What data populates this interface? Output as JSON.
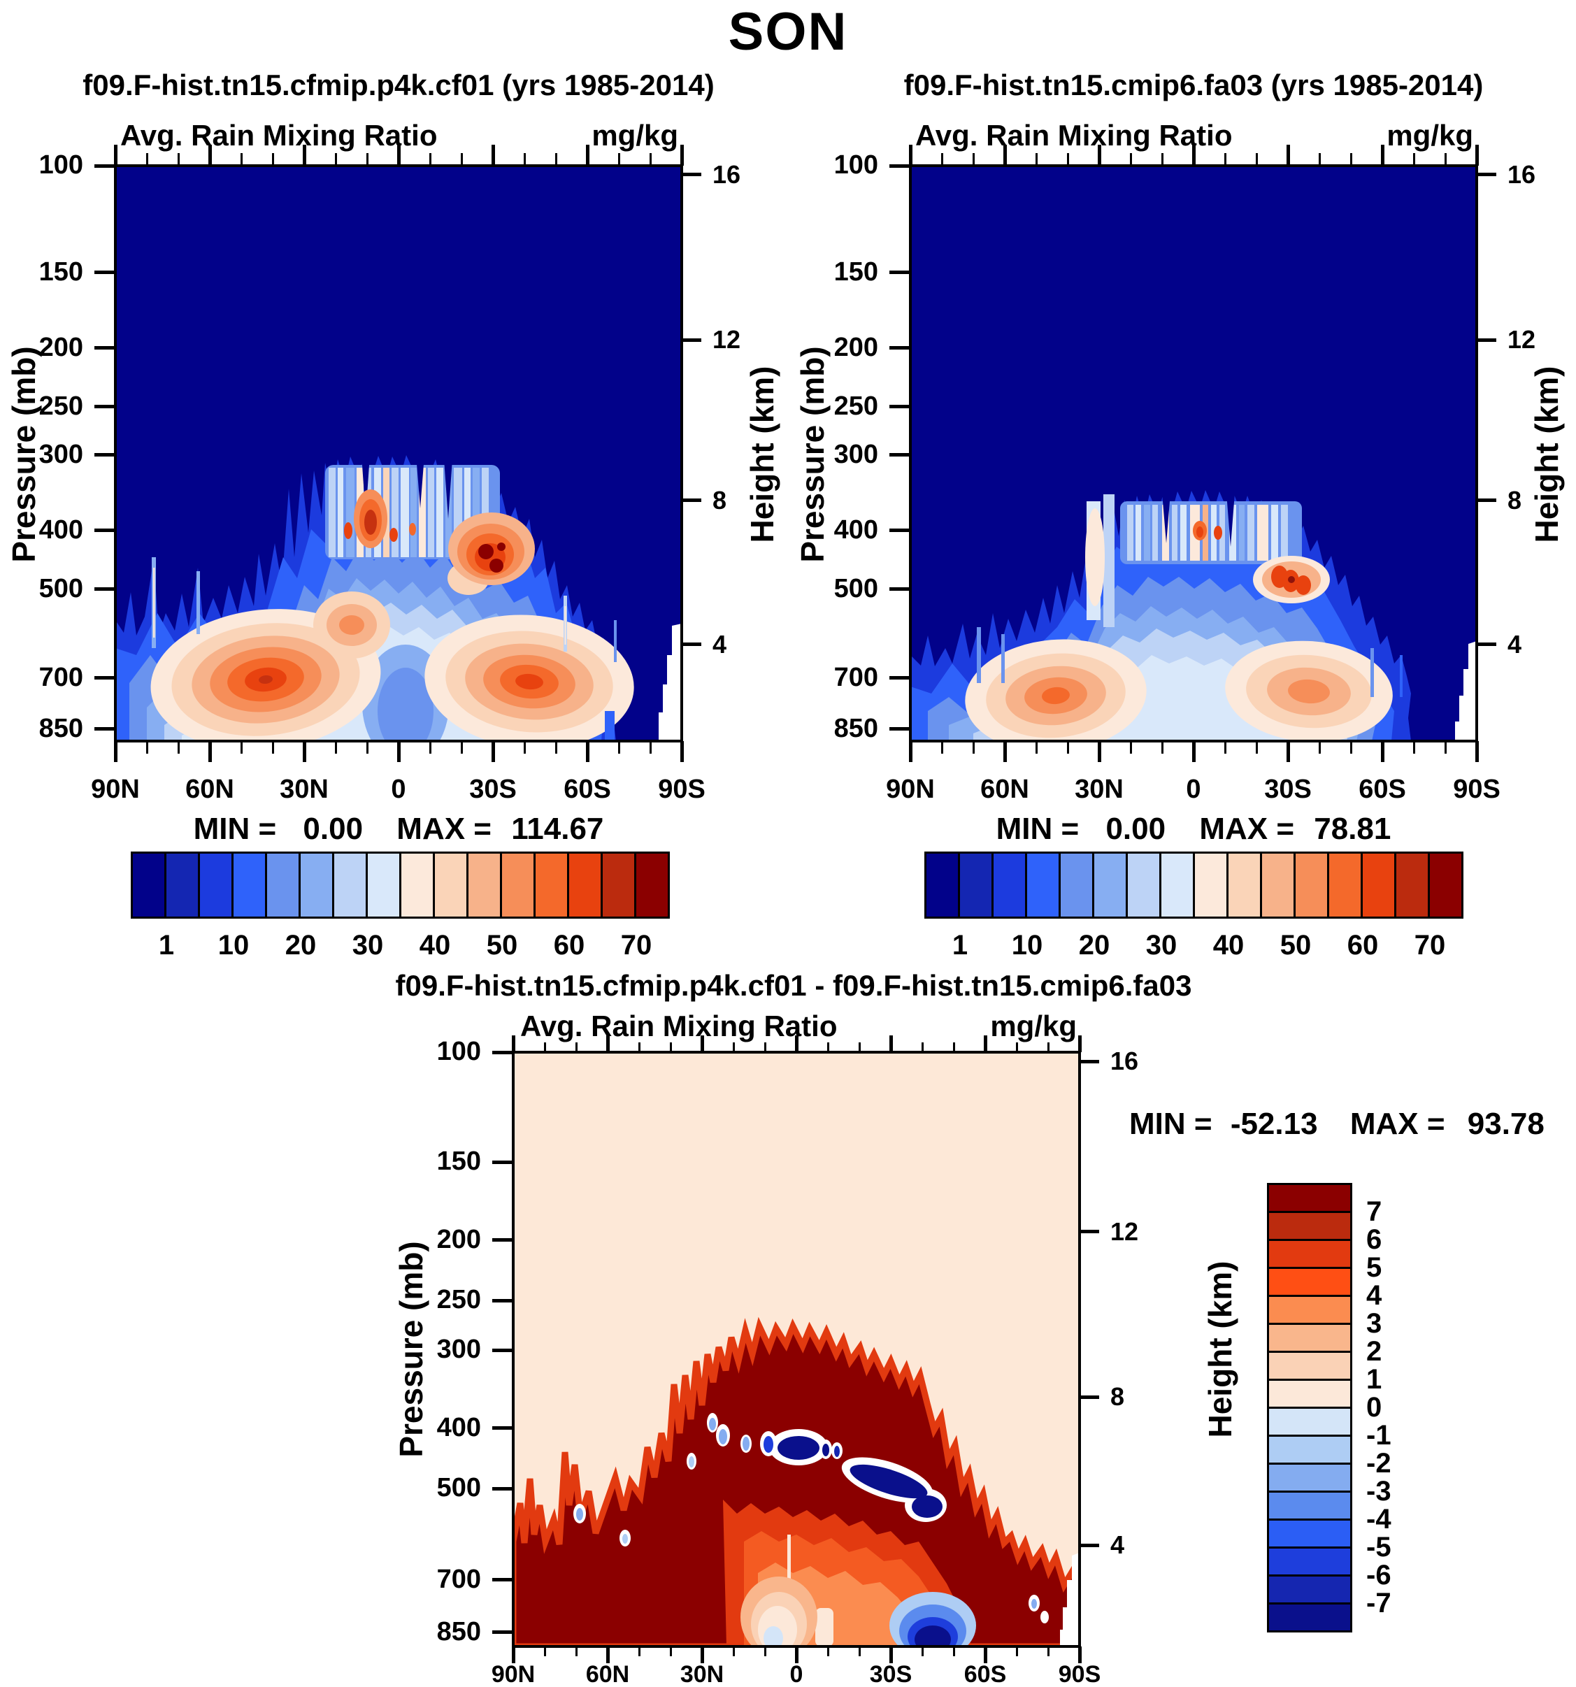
{
  "page_title": "SON",
  "axes": {
    "pressure_label": "Pressure (mb)",
    "height_label": "Height (km)",
    "pressure_ticks": [
      100,
      150,
      200,
      250,
      300,
      400,
      500,
      700,
      850
    ],
    "height_ticks": [
      16,
      12,
      8,
      4
    ],
    "lat_ticks": [
      "90N",
      "60N",
      "30N",
      "0",
      "30S",
      "60S",
      "90S"
    ],
    "lat_minor_interval_deg": 10,
    "pressure_scale": "log"
  },
  "palette_mixing": [
    "#02028A",
    "#1426B2",
    "#1C3BDE",
    "#2F62FA",
    "#6A93EE",
    "#87AEF2",
    "#BDD3F6",
    "#D9E8FA",
    "#FCE9DB",
    "#FAD4B8",
    "#F7B28A",
    "#F68E59",
    "#F4692B",
    "#E8420F",
    "#BB2B0E",
    "#8B0000"
  ],
  "palette_diff_top_to_bottom": [
    "#8B0000",
    "#BB2B0E",
    "#E23A10",
    "#FF4F14",
    "#FB8C50",
    "#F9B68C",
    "#FAD2B6",
    "#FCE8D9",
    "#D4E5F8",
    "#AECDF4",
    "#84ACF0",
    "#5B8BEE",
    "#2B5EF5",
    "#1E3EDC",
    "#1526B0",
    "#0A108C"
  ],
  "panels": [
    {
      "id": "left",
      "title": "f09.F-hist.tn15.cfmip.p4k.cf01 (yrs 1985-2014)",
      "subtitle": "Avg. Rain Mixing Ratio",
      "units": "mg/kg",
      "min_label": "MIN =",
      "min": "0.00",
      "max_label": "MAX =",
      "max": "114.67",
      "colorbar_labels": [
        1,
        10,
        20,
        30,
        40,
        50,
        60,
        70
      ]
    },
    {
      "id": "right",
      "title": "f09.F-hist.tn15.cmip6.fa03 (yrs 1985-2014)",
      "subtitle": "Avg. Rain Mixing Ratio",
      "units": "mg/kg",
      "min_label": "MIN =",
      "min": "0.00",
      "max_label": "MAX =",
      "max": "78.81",
      "colorbar_labels": [
        1,
        10,
        20,
        30,
        40,
        50,
        60,
        70
      ]
    },
    {
      "id": "diff",
      "title": "f09.F-hist.tn15.cfmip.p4k.cf01 - f09.F-hist.tn15.cmip6.fa03",
      "subtitle": "Avg. Rain Mixing Ratio",
      "units": "mg/kg",
      "min_label": "MIN =",
      "min": "-52.13",
      "max_label": "MAX =",
      "max": "93.78",
      "colorbar_labels": [
        7,
        6,
        5,
        4,
        3,
        2,
        1,
        0,
        -1,
        -2,
        -3,
        -4,
        -5,
        -6,
        -7
      ]
    }
  ],
  "chart_data": [
    {
      "type": "heatmap",
      "subtype": "filled-contour latitude-pressure cross-section",
      "title": "f09.F-hist.tn15.cfmip.p4k.cf01 (yrs 1985-2014)",
      "variable": "Avg. Rain Mixing Ratio",
      "units": "mg/kg",
      "x_axis": {
        "label": "Latitude",
        "ticks": [
          "90N",
          "60N",
          "30N",
          "0",
          "30S",
          "60S",
          "90S"
        ],
        "minor_tick_interval_deg": 10,
        "range": [
          "90N",
          "90S"
        ]
      },
      "y_axis_left": {
        "label": "Pressure (mb)",
        "scale": "log",
        "ticks": [
          100,
          150,
          200,
          250,
          300,
          400,
          500,
          700,
          850
        ],
        "range": [
          100,
          890
        ]
      },
      "y_axis_right": {
        "label": "Height (km)",
        "ticks": [
          16,
          12,
          8,
          4
        ]
      },
      "stats": {
        "min": 0.0,
        "max": 114.67
      },
      "contour_levels": [
        1,
        5,
        10,
        15,
        20,
        25,
        30,
        35,
        40,
        45,
        50,
        55,
        60,
        65,
        70
      ],
      "colorbar_labels": [
        1,
        10,
        20,
        30,
        40,
        50,
        60,
        70
      ],
      "legend_position": "horizontal colorbar below panel",
      "grid": false,
      "features": [
        {
          "description": "darkest blue (< 1 mg/kg) everywhere above ~300 mb and poleward of ~70N and ~65S"
        },
        {
          "description": "ragged striated field of 1-25 mg/kg below ~300 mb between ~65N and ~60S"
        },
        {
          "description": "striped mid-level band ~350-500 mb from ~25N to ~35S with orange/red cores > 70 mg/kg"
        },
        {
          "description": "strongest core (field max 114.67) near 27S at ~450 mb, dark red",
          "approx_lat": "27S",
          "approx_pressure_mb": 450
        },
        {
          "description": "secondary red core near 8N at ~400 mb",
          "approx_lat": "8N",
          "approx_pressure_mb": 400
        },
        {
          "description": "low-level maximum > 65 mg/kg centered ~45N at ~700 mb",
          "approx_lat": "45N",
          "approx_pressure_mb": 700
        },
        {
          "description": "low-level maximum > 65 mg/kg centered ~40S at ~700 mb",
          "approx_lat": "40S",
          "approx_pressure_mb": 700
        },
        {
          "description": "white below-surface notch near the South Pole (~78S-90S, below ~600 mb)"
        }
      ]
    },
    {
      "type": "heatmap",
      "subtype": "filled-contour latitude-pressure cross-section",
      "title": "f09.F-hist.tn15.cmip6.fa03 (yrs 1985-2014)",
      "variable": "Avg. Rain Mixing Ratio",
      "units": "mg/kg",
      "x_axis": {
        "label": "Latitude",
        "ticks": [
          "90N",
          "60N",
          "30N",
          "0",
          "30S",
          "60S",
          "90S"
        ],
        "minor_tick_interval_deg": 10,
        "range": [
          "90N",
          "90S"
        ]
      },
      "y_axis_left": {
        "label": "Pressure (mb)",
        "scale": "log",
        "ticks": [
          100,
          150,
          200,
          250,
          300,
          400,
          500,
          700,
          850
        ],
        "range": [
          100,
          890
        ]
      },
      "y_axis_right": {
        "label": "Height (km)",
        "ticks": [
          16,
          12,
          8,
          4
        ]
      },
      "stats": {
        "min": 0.0,
        "max": 78.81
      },
      "contour_levels": [
        1,
        5,
        10,
        15,
        20,
        25,
        30,
        35,
        40,
        45,
        50,
        55,
        60,
        65,
        70
      ],
      "colorbar_labels": [
        1,
        10,
        20,
        30,
        40,
        50,
        60,
        70
      ],
      "legend_position": "horizontal colorbar below panel",
      "grid": false,
      "features": [
        {
          "description": "darkest blue (< 1 mg/kg) above ~360 mb and poleward of ~70N and ~60S; overall weaker than left panel"
        },
        {
          "description": "striated band ~400-520 mb from ~25N to ~35S with whitish cells and small red cores"
        },
        {
          "description": "strongest cluster (field max 78.81) near 27S-33S at ~500 mb",
          "approx_lat": "30S",
          "approx_pressure_mb": 500
        },
        {
          "description": "small red cells near 3S-8S at ~470 mb",
          "approx_lat": "5S",
          "approx_pressure_mb": 470
        },
        {
          "description": "low-level maximum ~50 mg/kg centered ~45N at ~750 mb",
          "approx_lat": "45N",
          "approx_pressure_mb": 750
        },
        {
          "description": "low-level maximum ~40 mg/kg centered ~34S at ~750 mb",
          "approx_lat": "34S",
          "approx_pressure_mb": 750
        },
        {
          "description": "white below-surface notch near the South Pole (~80S-90S)"
        }
      ]
    },
    {
      "type": "heatmap",
      "subtype": "filled-contour difference (panel1 minus panel2)",
      "title": "f09.F-hist.tn15.cfmip.p4k.cf01 - f09.F-hist.tn15.cmip6.fa03",
      "variable": "Avg. Rain Mixing Ratio",
      "units": "mg/kg",
      "x_axis": {
        "label": "Latitude",
        "ticks": [
          "90N",
          "60N",
          "30N",
          "0",
          "30S",
          "60S",
          "90S"
        ],
        "minor_tick_interval_deg": 10,
        "range": [
          "90N",
          "90S"
        ]
      },
      "y_axis_left": {
        "label": "Pressure (mb)",
        "scale": "log",
        "ticks": [
          100,
          150,
          200,
          250,
          300,
          400,
          500,
          700,
          850
        ],
        "range": [
          100,
          895
        ]
      },
      "y_axis_right": {
        "label": "Height (km)",
        "ticks": [
          16,
          12,
          8,
          4
        ]
      },
      "stats": {
        "min": -52.13,
        "max": 93.78
      },
      "contour_levels": [
        -7,
        -6,
        -5,
        -4,
        -3,
        -2,
        -1,
        0,
        1,
        2,
        3,
        4,
        5,
        6,
        7
      ],
      "colorbar_labels_top_to_bottom": [
        7,
        6,
        5,
        4,
        3,
        2,
        1,
        0,
        -1,
        -2,
        -3,
        -4,
        -5,
        -6,
        -7
      ],
      "legend_position": "vertical colorbar right of panel",
      "grid": false,
      "features": [
        {
          "description": "pale cream background (0 to +1) above ~300 mb and at high latitudes"
        },
        {
          "description": "thick dark-red arch (> +7) from ~300 mb over the tropics sloping down to the surface near ~70N and ~75S"
        },
        {
          "description": "negative band (< -7, navy with white rim) at ~430-520 mb from ~10N to ~40S embedded in the arch"
        },
        {
          "description": "negative pocket (< -7) near the surface around 38S-48S"
        },
        {
          "description": "weak negative/light-blue patch near the surface around 25N-45N"
        },
        {
          "description": "orange/red interior (+2 to +6) below ~650 mb between ~20N and ~30S with cream streaks near the equator"
        },
        {
          "description": "white below-surface notch near the South Pole"
        }
      ]
    }
  ]
}
